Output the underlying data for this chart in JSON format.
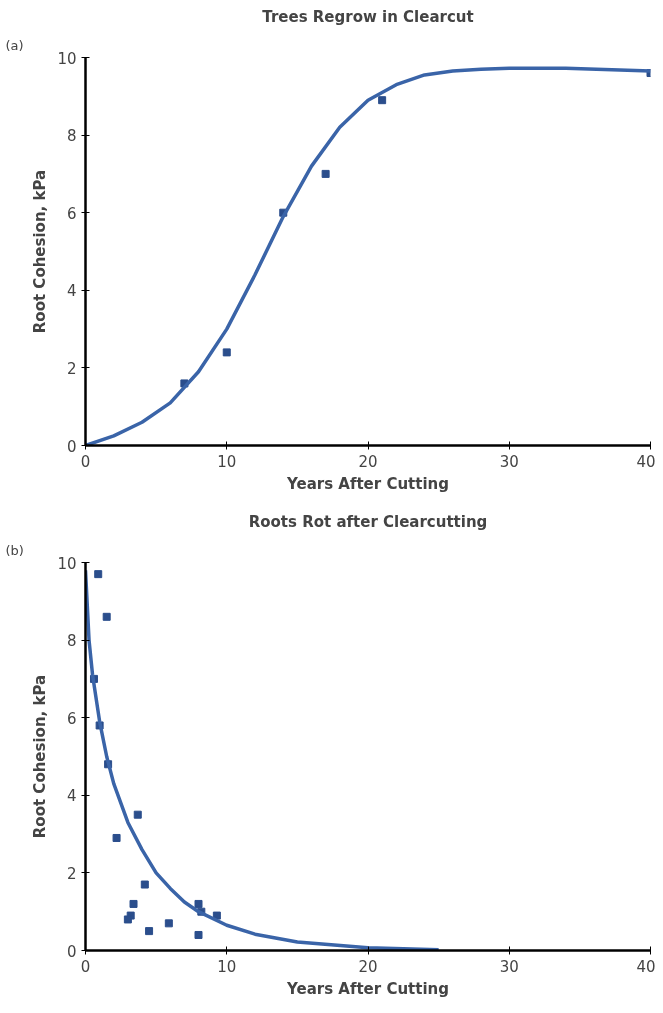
{
  "chart_data": [
    {
      "type": "scatter",
      "title": "Trees Regrow in Clearcut",
      "xlabel": "Years After Cutting",
      "ylabel": "Root Cohesion, kPa",
      "annotations": [
        "(a)"
      ],
      "xlim": [
        0,
        40
      ],
      "ylim": [
        0,
        10
      ],
      "xticks": [
        0,
        10,
        20,
        30,
        40
      ],
      "yticks": [
        0,
        2,
        4,
        6,
        8,
        10
      ],
      "grid": false,
      "series": [
        {
          "marker": "square",
          "color": "#2b4e8c",
          "x": [
            7,
            10,
            14,
            17,
            21,
            40
          ],
          "values": [
            1.6,
            2.4,
            6.0,
            7.0,
            8.9,
            9.6
          ]
        },
        {
          "type": "line",
          "color": "#3a64a8",
          "line_style": "solid",
          "x": [
            0,
            2,
            4,
            6,
            8,
            10,
            12,
            14,
            16,
            18,
            20,
            22,
            24,
            26,
            28,
            30,
            34,
            40
          ],
          "values": [
            0,
            0.25,
            0.6,
            1.1,
            1.9,
            3.0,
            4.4,
            5.9,
            7.2,
            8.2,
            8.9,
            9.3,
            9.55,
            9.65,
            9.7,
            9.72,
            9.72,
            9.65
          ]
        }
      ]
    },
    {
      "type": "scatter",
      "title": "Roots Rot after Clearcutting",
      "xlabel": "Years After Cutting",
      "ylabel": "Root Cohesion, kPa",
      "annotations": [
        "(b)"
      ],
      "xlim": [
        0,
        40
      ],
      "ylim": [
        0,
        10
      ],
      "xticks": [
        0,
        10,
        20,
        30,
        40
      ],
      "yticks": [
        0,
        2,
        4,
        6,
        8,
        10
      ],
      "grid": false,
      "series": [
        {
          "marker": "square",
          "color": "#2b4e8c",
          "x": [
            0.9,
            1.5,
            0.6,
            1.0,
            1.6,
            3.7,
            2.2,
            4.2,
            3.4,
            3.2,
            3.0,
            4.5,
            5.9,
            8.0,
            8.2,
            9.3,
            8.0
          ],
          "values": [
            9.7,
            8.6,
            7.0,
            5.8,
            4.8,
            3.5,
            2.9,
            1.7,
            1.2,
            0.9,
            0.8,
            0.5,
            0.7,
            1.2,
            1.0,
            0.9,
            0.4
          ]
        },
        {
          "type": "line",
          "color": "#3a64a8",
          "line_style": "solid",
          "x": [
            0,
            0.25,
            0.5,
            1,
            1.5,
            2,
            3,
            4,
            5,
            6,
            7,
            8,
            10,
            12,
            15,
            20,
            25
          ],
          "values": [
            9.8,
            8.0,
            7.1,
            5.9,
            5.0,
            4.3,
            3.3,
            2.6,
            2.0,
            1.6,
            1.25,
            1.0,
            0.65,
            0.42,
            0.22,
            0.07,
            0.02
          ]
        }
      ]
    }
  ]
}
